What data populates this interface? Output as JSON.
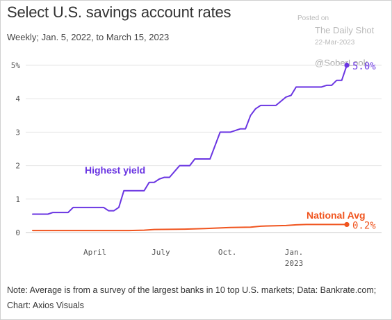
{
  "page": {
    "title": "Select U.S. savings account rates",
    "subtitle": "Weekly; Jan. 5, 2022, to March 15, 2023",
    "note": "Note: Average is from a survey of the largest banks in 10 top U.S. markets; Data: Bankrate.com; Chart: Axios Visuals",
    "watermark": {
      "posted_on": "Posted on",
      "source": "The Daily Shot",
      "date": "22-Mar-2023",
      "handle": "@SoberLook"
    }
  },
  "chart_data": {
    "type": "line",
    "title": "Select U.S. savings account rates",
    "subtitle": "Weekly; Jan. 5, 2022, to March 15, 2023",
    "xlabel": "",
    "ylabel": "",
    "ylim": [
      0,
      5
    ],
    "xlim": [
      "2022-01-05",
      "2023-03-15"
    ],
    "y_ticks": [
      0,
      1,
      2,
      3,
      4,
      5
    ],
    "y_tick_labels": [
      "0",
      "1",
      "2",
      "3",
      "4",
      "5%"
    ],
    "x_ticks": [
      "2022-04-01",
      "2022-07-01",
      "2022-10-01",
      "2023-01-01"
    ],
    "x_tick_labels": [
      "April",
      "July",
      "Oct.",
      "Jan."
    ],
    "x_tick_sublabels": [
      "",
      "",
      "",
      "2023"
    ],
    "grid": "horizontal",
    "series": [
      {
        "name": "Highest yield",
        "color": "#6a35e2",
        "end_label": "5.0%",
        "points": [
          [
            "2022-01-05",
            0.55
          ],
          [
            "2022-01-26",
            0.55
          ],
          [
            "2022-02-02",
            0.6
          ],
          [
            "2022-02-23",
            0.6
          ],
          [
            "2022-03-02",
            0.75
          ],
          [
            "2022-04-13",
            0.75
          ],
          [
            "2022-04-20",
            0.65
          ],
          [
            "2022-04-27",
            0.65
          ],
          [
            "2022-05-04",
            0.75
          ],
          [
            "2022-05-11",
            1.25
          ],
          [
            "2022-06-08",
            1.25
          ],
          [
            "2022-06-15",
            1.5
          ],
          [
            "2022-06-22",
            1.5
          ],
          [
            "2022-06-29",
            1.6
          ],
          [
            "2022-07-06",
            1.65
          ],
          [
            "2022-07-13",
            1.65
          ],
          [
            "2022-07-27",
            2.0
          ],
          [
            "2022-08-10",
            2.0
          ],
          [
            "2022-08-17",
            2.2
          ],
          [
            "2022-09-07",
            2.2
          ],
          [
            "2022-09-21",
            3.0
          ],
          [
            "2022-10-05",
            3.0
          ],
          [
            "2022-10-19",
            3.1
          ],
          [
            "2022-10-26",
            3.1
          ],
          [
            "2022-11-02",
            3.5
          ],
          [
            "2022-11-09",
            3.7
          ],
          [
            "2022-11-16",
            3.8
          ],
          [
            "2022-12-07",
            3.8
          ],
          [
            "2022-12-21",
            4.05
          ],
          [
            "2022-12-28",
            4.1
          ],
          [
            "2023-01-04",
            4.35
          ],
          [
            "2023-02-08",
            4.35
          ],
          [
            "2023-02-15",
            4.4
          ],
          [
            "2023-02-22",
            4.4
          ],
          [
            "2023-03-01",
            4.55
          ],
          [
            "2023-03-08",
            4.55
          ],
          [
            "2023-03-15",
            5.0
          ]
        ]
      },
      {
        "name": "National Avg",
        "color": "#f0541e",
        "end_label": "0.2%",
        "points": [
          [
            "2022-01-05",
            0.06
          ],
          [
            "2022-05-18",
            0.06
          ],
          [
            "2022-06-08",
            0.07
          ],
          [
            "2022-06-22",
            0.09
          ],
          [
            "2022-08-03",
            0.1
          ],
          [
            "2022-08-31",
            0.12
          ],
          [
            "2022-10-05",
            0.15
          ],
          [
            "2022-11-02",
            0.16
          ],
          [
            "2022-11-16",
            0.19
          ],
          [
            "2022-12-21",
            0.21
          ],
          [
            "2023-01-04",
            0.23
          ],
          [
            "2023-01-18",
            0.24
          ],
          [
            "2023-03-15",
            0.24
          ]
        ]
      }
    ]
  }
}
